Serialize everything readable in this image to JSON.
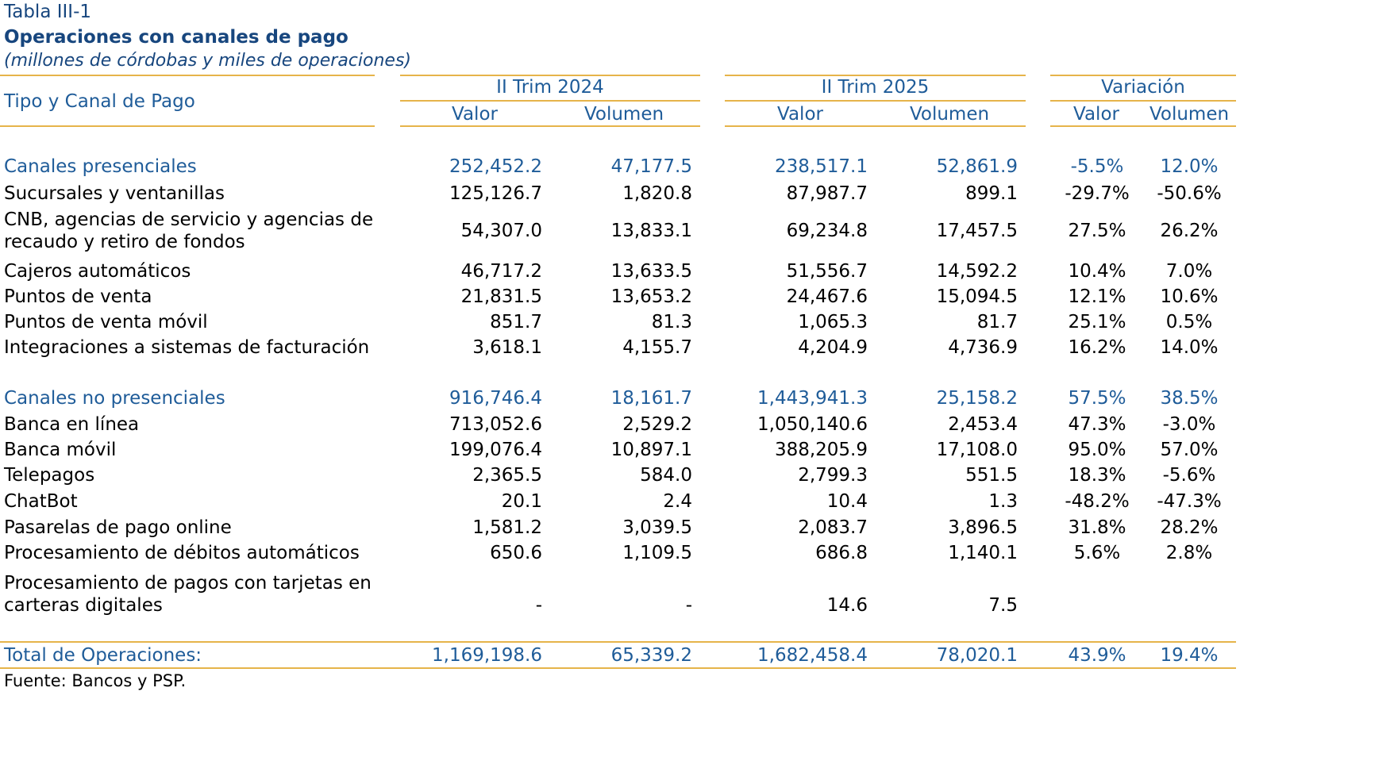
{
  "table": {
    "label": "Tabla III-1",
    "title": "Operaciones con canales de pago",
    "subtitle": "(millones de córdobas y miles de operaciones)",
    "row_header": "Tipo y Canal de Pago",
    "periods": [
      "II Trim 2024",
      "II Trim 2025",
      "Variación"
    ],
    "subcolumns": [
      "Valor",
      "Volumen",
      "Valor",
      "Volumen",
      "Valor",
      "Volumen"
    ],
    "rows": [
      {
        "label": "Canales presenciales",
        "kind": "section",
        "values": [
          "252,452.2",
          "47,177.5",
          "238,517.1",
          "52,861.9",
          "-5.5%",
          "12.0%"
        ]
      },
      {
        "label": "Sucursales y ventanillas",
        "kind": "item",
        "values": [
          "125,126.7",
          "1,820.8",
          "87,987.7",
          "899.1",
          "-29.7%",
          "-50.6%"
        ]
      },
      {
        "label": "CNB, agencias de servicio y agencias de\nrecaudo y retiro de fondos",
        "kind": "item",
        "values": [
          "54,307.0",
          "13,833.1",
          "69,234.8",
          "17,457.5",
          "27.5%",
          "26.2%"
        ]
      },
      {
        "label": "Cajeros automáticos",
        "kind": "item",
        "values": [
          "46,717.2",
          "13,633.5",
          "51,556.7",
          "14,592.2",
          "10.4%",
          "7.0%"
        ]
      },
      {
        "label": "Puntos de venta",
        "kind": "item",
        "values": [
          "21,831.5",
          "13,653.2",
          "24,467.6",
          "15,094.5",
          "12.1%",
          "10.6%"
        ]
      },
      {
        "label": "Puntos de venta móvil",
        "kind": "item",
        "values": [
          "851.7",
          "81.3",
          "1,065.3",
          "81.7",
          "25.1%",
          "0.5%"
        ]
      },
      {
        "label": "Integraciones a sistemas de facturación",
        "kind": "item",
        "values": [
          "3,618.1",
          "4,155.7",
          "4,204.9",
          "4,736.9",
          "16.2%",
          "14.0%"
        ]
      },
      {
        "label": "Canales no presenciales",
        "kind": "section",
        "values": [
          "916,746.4",
          "18,161.7",
          "1,443,941.3",
          "25,158.2",
          "57.5%",
          "38.5%"
        ]
      },
      {
        "label": "Banca en línea",
        "kind": "item",
        "values": [
          "713,052.6",
          "2,529.2",
          "1,050,140.6",
          "2,453.4",
          "47.3%",
          "-3.0%"
        ]
      },
      {
        "label": "Banca móvil",
        "kind": "item",
        "values": [
          "199,076.4",
          "10,897.1",
          "388,205.9",
          "17,108.0",
          "95.0%",
          "57.0%"
        ]
      },
      {
        "label": "Telepagos",
        "kind": "item",
        "values": [
          "2,365.5",
          "584.0",
          "2,799.3",
          "551.5",
          "18.3%",
          "-5.6%"
        ]
      },
      {
        "label": "ChatBot",
        "kind": "item",
        "values": [
          "20.1",
          "2.4",
          "10.4",
          "1.3",
          "-48.2%",
          "-47.3%"
        ]
      },
      {
        "label": "Pasarelas de pago online",
        "kind": "item",
        "values": [
          "1,581.2",
          "3,039.5",
          "2,083.7",
          "3,896.5",
          "31.8%",
          "28.2%"
        ]
      },
      {
        "label": "Procesamiento de débitos automáticos",
        "kind": "item",
        "values": [
          "650.6",
          "1,109.5",
          "686.8",
          "1,140.1",
          "5.6%",
          "2.8%"
        ]
      },
      {
        "label": "Procesamiento de pagos con tarjetas en\ncarteras digitales",
        "kind": "item",
        "values": [
          "-",
          "-",
          "14.6",
          "7.5",
          "",
          ""
        ]
      }
    ],
    "total": {
      "label": "Total de Operaciones:",
      "values": [
        "1,169,198.6",
        "65,339.2",
        "1,682,458.4",
        "78,020.1",
        "43.9%",
        "19.4%"
      ]
    },
    "source": "Fuente: Bancos y PSP."
  }
}
